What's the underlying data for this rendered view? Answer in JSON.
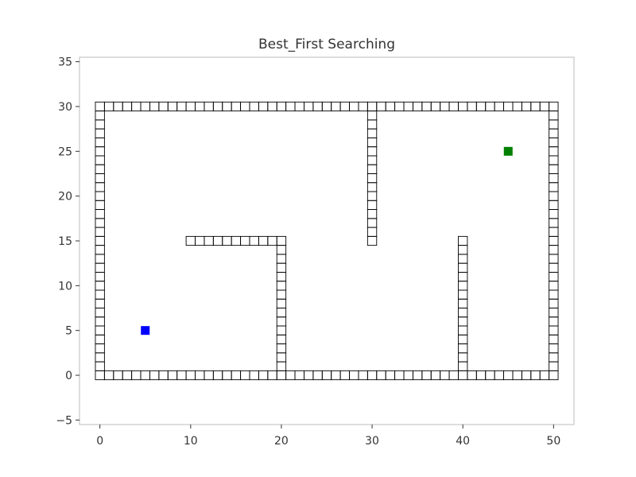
{
  "chart_data": {
    "type": "scatter",
    "title": "Best_First Searching",
    "xlabel": "",
    "ylabel": "",
    "xlim": [
      -2.25,
      52.25
    ],
    "ylim": [
      -5.5,
      35.5
    ],
    "grid": false,
    "x_ticks": [
      0,
      10,
      20,
      30,
      40,
      50
    ],
    "y_ticks": [
      -5,
      0,
      5,
      10,
      15,
      20,
      25,
      30,
      35
    ],
    "x_tick_labels": [
      "0",
      "10",
      "20",
      "30",
      "40",
      "50"
    ],
    "y_tick_labels": [
      "−5",
      "0",
      "5",
      "10",
      "15",
      "20",
      "25",
      "30",
      "35"
    ],
    "obstacle_segments": [
      {
        "name": "bottom-boundary",
        "x": [
          0,
          50
        ],
        "y": [
          0,
          0
        ]
      },
      {
        "name": "top-boundary",
        "x": [
          0,
          50
        ],
        "y": [
          30,
          30
        ]
      },
      {
        "name": "left-boundary",
        "x": [
          0,
          0
        ],
        "y": [
          0,
          30
        ]
      },
      {
        "name": "right-boundary",
        "x": [
          50,
          50
        ],
        "y": [
          0,
          30
        ]
      },
      {
        "name": "inner-horizontal-wall",
        "x": [
          10,
          20
        ],
        "y": [
          15,
          15
        ]
      },
      {
        "name": "inner-wall-x20",
        "x": [
          20,
          20
        ],
        "y": [
          0,
          15
        ]
      },
      {
        "name": "inner-wall-x30",
        "x": [
          30,
          30
        ],
        "y": [
          15,
          30
        ]
      },
      {
        "name": "inner-wall-x40",
        "x": [
          40,
          40
        ],
        "y": [
          0,
          15
        ]
      }
    ],
    "start": {
      "x": 5,
      "y": 5,
      "color": "#0000ff"
    },
    "goal": {
      "x": 45,
      "y": 25,
      "color": "#008000"
    },
    "obstacle_color": "#000000"
  }
}
